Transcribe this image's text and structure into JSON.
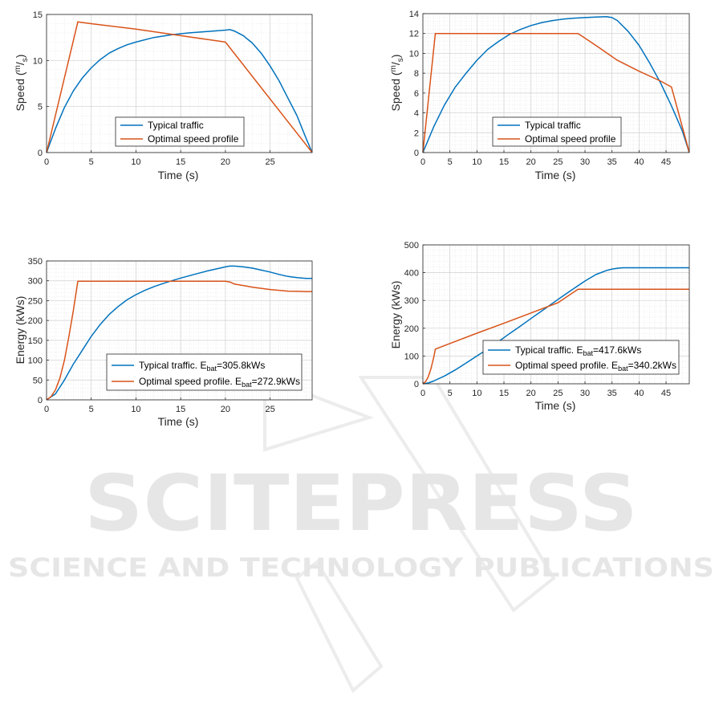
{
  "watermark": {
    "main": "SCITEPRESS",
    "sub": "SCIENCE AND TECHNOLOGY PUBLICATIONS",
    "color": "#e6e6e6"
  },
  "colors": {
    "typical": "#0072BD",
    "optimal": "#D95319",
    "grid": "#dcdcdc",
    "axis": "#262626"
  },
  "chart_data": [
    {
      "id": "speed-30",
      "type": "line",
      "xlabel": "Time (s)",
      "ylabel_main": "Speed (",
      "ylabel_sup": "m",
      "ylabel_slash": "/",
      "ylabel_sub": "s",
      "ylabel_close": ")",
      "xlim": [
        0,
        29.7
      ],
      "ylim": [
        0,
        15
      ],
      "xticks": [
        0,
        5,
        10,
        15,
        20,
        25
      ],
      "yticks": [
        0,
        5,
        10,
        15
      ],
      "grid": true,
      "legend_position": "lower-center",
      "series": [
        {
          "name": "Typical traffic",
          "color": "#0072BD",
          "x": [
            0,
            1,
            2,
            3,
            4,
            5,
            6,
            7,
            8,
            9,
            10,
            12,
            14,
            16,
            18,
            20,
            20.5,
            21,
            22,
            23,
            24,
            25,
            26,
            27,
            28,
            29,
            29.7
          ],
          "y": [
            0,
            2.6,
            4.9,
            6.7,
            8.1,
            9.2,
            10.1,
            10.8,
            11.3,
            11.7,
            12.0,
            12.5,
            12.8,
            13.0,
            13.15,
            13.3,
            13.35,
            13.2,
            12.7,
            11.9,
            10.8,
            9.4,
            7.8,
            5.9,
            4.0,
            1.6,
            0
          ]
        },
        {
          "name": "Optimal speed profile",
          "color": "#D95319",
          "x": [
            0,
            3.5,
            5,
            10,
            15,
            20,
            29.7
          ],
          "y": [
            0,
            14.2,
            14.0,
            13.4,
            12.7,
            12.0,
            0
          ]
        }
      ]
    },
    {
      "id": "speed-50",
      "type": "line",
      "xlabel": "Time (s)",
      "ylabel_main": "Speed (",
      "ylabel_sup": "m",
      "ylabel_slash": "/",
      "ylabel_sub": "s",
      "ylabel_close": ")",
      "xlim": [
        0,
        49.3
      ],
      "ylim": [
        0,
        14
      ],
      "xticks": [
        0,
        5,
        10,
        15,
        20,
        25,
        30,
        35,
        40,
        45
      ],
      "yticks": [
        0,
        2,
        4,
        6,
        8,
        10,
        12,
        14
      ],
      "grid": true,
      "legend_position": "lower-center",
      "series": [
        {
          "name": "Typical traffic",
          "color": "#0072BD",
          "x": [
            0,
            2,
            4,
            6,
            8,
            10,
            12,
            14,
            16,
            18,
            20,
            22,
            24,
            26,
            28,
            30,
            32,
            34,
            35,
            36,
            38,
            40,
            42,
            44,
            46,
            48,
            49.3
          ],
          "y": [
            0,
            2.6,
            4.8,
            6.6,
            8.0,
            9.3,
            10.4,
            11.2,
            11.9,
            12.4,
            12.8,
            13.1,
            13.3,
            13.45,
            13.55,
            13.6,
            13.65,
            13.7,
            13.6,
            13.3,
            12.2,
            10.8,
            9.0,
            7.0,
            4.7,
            2.2,
            0
          ]
        },
        {
          "name": "Optimal speed profile",
          "color": "#D95319",
          "x": [
            0,
            2.3,
            28.7,
            32,
            36,
            40,
            44,
            46,
            49.3
          ],
          "y": [
            0,
            12,
            12,
            10.8,
            9.3,
            8.2,
            7.2,
            6.6,
            0
          ]
        }
      ]
    },
    {
      "id": "energy-30",
      "type": "line",
      "xlabel": "Time (s)",
      "ylabel": "Energy (kWs)",
      "xlim": [
        0,
        29.7
      ],
      "ylim": [
        0,
        350
      ],
      "xticks": [
        0,
        5,
        10,
        15,
        20,
        25
      ],
      "yticks": [
        0,
        50,
        100,
        150,
        200,
        250,
        300,
        350
      ],
      "grid": true,
      "legend_position": "lower-right",
      "series": [
        {
          "name_prefix": "Typical traffic. E",
          "name_sub": "bat",
          "name_suffix": "=305.8kWs",
          "color": "#0072BD",
          "x": [
            0,
            1,
            2,
            3,
            4,
            5,
            6,
            7,
            8,
            9,
            10,
            11,
            12,
            13,
            14,
            15,
            16,
            17,
            18,
            19,
            20,
            20.5,
            21,
            22,
            23,
            24,
            25,
            26,
            27,
            28,
            29,
            29.7
          ],
          "y": [
            0,
            15,
            50,
            90,
            125,
            160,
            190,
            215,
            235,
            252,
            265,
            276,
            285,
            293,
            300,
            307,
            313,
            319,
            325,
            330,
            335,
            337,
            337,
            335,
            332,
            327,
            322,
            316,
            311,
            308,
            306,
            305.8
          ]
        },
        {
          "name_prefix": "Optimal speed profile. E",
          "name_sub": "bat",
          "name_suffix": "=272.9kWs",
          "color": "#D95319",
          "x": [
            0,
            0.5,
            1,
            1.5,
            2,
            2.5,
            3,
            3.5,
            10,
            15,
            20,
            20.5,
            21,
            22,
            23,
            24,
            25,
            26,
            27,
            28,
            29,
            29.7
          ],
          "y": [
            0,
            8,
            25,
            55,
            100,
            160,
            225,
            299,
            299,
            299,
            299,
            297,
            292,
            288,
            284,
            281,
            278,
            276,
            274,
            273.5,
            273,
            272.9
          ]
        }
      ]
    },
    {
      "id": "energy-50",
      "type": "line",
      "xlabel": "Time (s)",
      "ylabel": "Energy (kWs)",
      "xlim": [
        0,
        49.3
      ],
      "ylim": [
        0,
        500
      ],
      "xticks": [
        0,
        5,
        10,
        15,
        20,
        25,
        30,
        35,
        40,
        45
      ],
      "yticks": [
        0,
        100,
        200,
        300,
        400,
        500
      ],
      "grid": true,
      "legend_position": "lower-center",
      "series": [
        {
          "name_prefix": "Typical traffic. E",
          "name_sub": "bat",
          "name_suffix": "=417.6kWs",
          "color": "#0072BD",
          "x": [
            0,
            1,
            2,
            4,
            6,
            8,
            10,
            12,
            14,
            16,
            18,
            20,
            22,
            24,
            26,
            28,
            30,
            32,
            34,
            35,
            36,
            37,
            40,
            45,
            49.3
          ],
          "y": [
            0,
            3,
            10,
            28,
            50,
            75,
            100,
            125,
            152,
            180,
            207,
            235,
            262,
            290,
            317,
            344,
            370,
            393,
            408,
            413,
            416,
            417.5,
            417.6,
            417.6,
            417.6
          ]
        },
        {
          "name_prefix": "Optimal speed profile. E",
          "name_sub": "bat",
          "name_suffix": "=340.2kWs",
          "color": "#D95319",
          "x": [
            0,
            0.5,
            1,
            1.5,
            2,
            2.3,
            5,
            10,
            15,
            20,
            25,
            28.7,
            30,
            35,
            40,
            45,
            49.3
          ],
          "y": [
            0,
            8,
            25,
            55,
            95,
            125,
            145,
            182,
            218,
            255,
            292,
            340.2,
            340.2,
            340.2,
            340.2,
            340.2,
            340.2
          ]
        }
      ]
    }
  ]
}
